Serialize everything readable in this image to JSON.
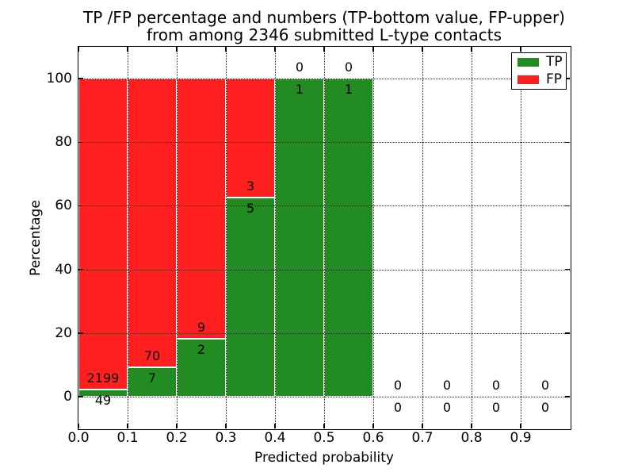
{
  "chart_data": {
    "type": "bar",
    "stacked": true,
    "title_line1": "TP /FP percentage and numbers (TP-bottom value, FP-upper)",
    "title_line2": "from among 2346 submitted L-type contacts",
    "xlabel": "Predicted probability",
    "ylabel": "Percentage",
    "xlim": [
      0.0,
      1.0
    ],
    "ylim": [
      -10,
      110
    ],
    "x_ticks": [
      {
        "value": 0.0,
        "label": "0.0"
      },
      {
        "value": 0.1,
        "label": "0.1"
      },
      {
        "value": 0.2,
        "label": "0.2"
      },
      {
        "value": 0.3,
        "label": "0.3"
      },
      {
        "value": 0.4,
        "label": "0.4"
      },
      {
        "value": 0.5,
        "label": "0.5"
      },
      {
        "value": 0.6,
        "label": "0.6"
      },
      {
        "value": 0.7,
        "label": "0.7"
      },
      {
        "value": 0.8,
        "label": "0.8"
      },
      {
        "value": 0.9,
        "label": "0.9"
      }
    ],
    "y_ticks": [
      {
        "value": 0,
        "label": "0"
      },
      {
        "value": 20,
        "label": "20"
      },
      {
        "value": 40,
        "label": "40"
      },
      {
        "value": 60,
        "label": "60"
      },
      {
        "value": 80,
        "label": "80"
      },
      {
        "value": 100,
        "label": "100"
      }
    ],
    "grid": "dotted, drawn above bars",
    "legend": {
      "position": "upper right",
      "entries": [
        {
          "label": "TP",
          "color": "#228b22"
        },
        {
          "label": "FP",
          "color": "#ff1f1f"
        }
      ]
    },
    "total_contacts": 2346,
    "bins": [
      {
        "range": [
          0.0,
          0.1
        ],
        "tp": 49,
        "fp": 2199
      },
      {
        "range": [
          0.1,
          0.2
        ],
        "tp": 7,
        "fp": 70
      },
      {
        "range": [
          0.2,
          0.3
        ],
        "tp": 2,
        "fp": 9
      },
      {
        "range": [
          0.3,
          0.4
        ],
        "tp": 5,
        "fp": 3
      },
      {
        "range": [
          0.4,
          0.5
        ],
        "tp": 1,
        "fp": 0
      },
      {
        "range": [
          0.5,
          0.6
        ],
        "tp": 1,
        "fp": 0
      },
      {
        "range": [
          0.6,
          0.7
        ],
        "tp": 0,
        "fp": 0
      },
      {
        "range": [
          0.7,
          0.8
        ],
        "tp": 0,
        "fp": 0
      },
      {
        "range": [
          0.8,
          0.9
        ],
        "tp": 0,
        "fp": 0
      },
      {
        "range": [
          0.9,
          1.0
        ],
        "tp": 0,
        "fp": 0
      }
    ],
    "colors": {
      "tp": "#228b22",
      "fp": "#ff1f1f",
      "grid": "#000000",
      "text": "#000000",
      "background": "#ffffff"
    },
    "note": "bars are stacked to 100%; TP count shown below segment boundary, FP count above"
  }
}
